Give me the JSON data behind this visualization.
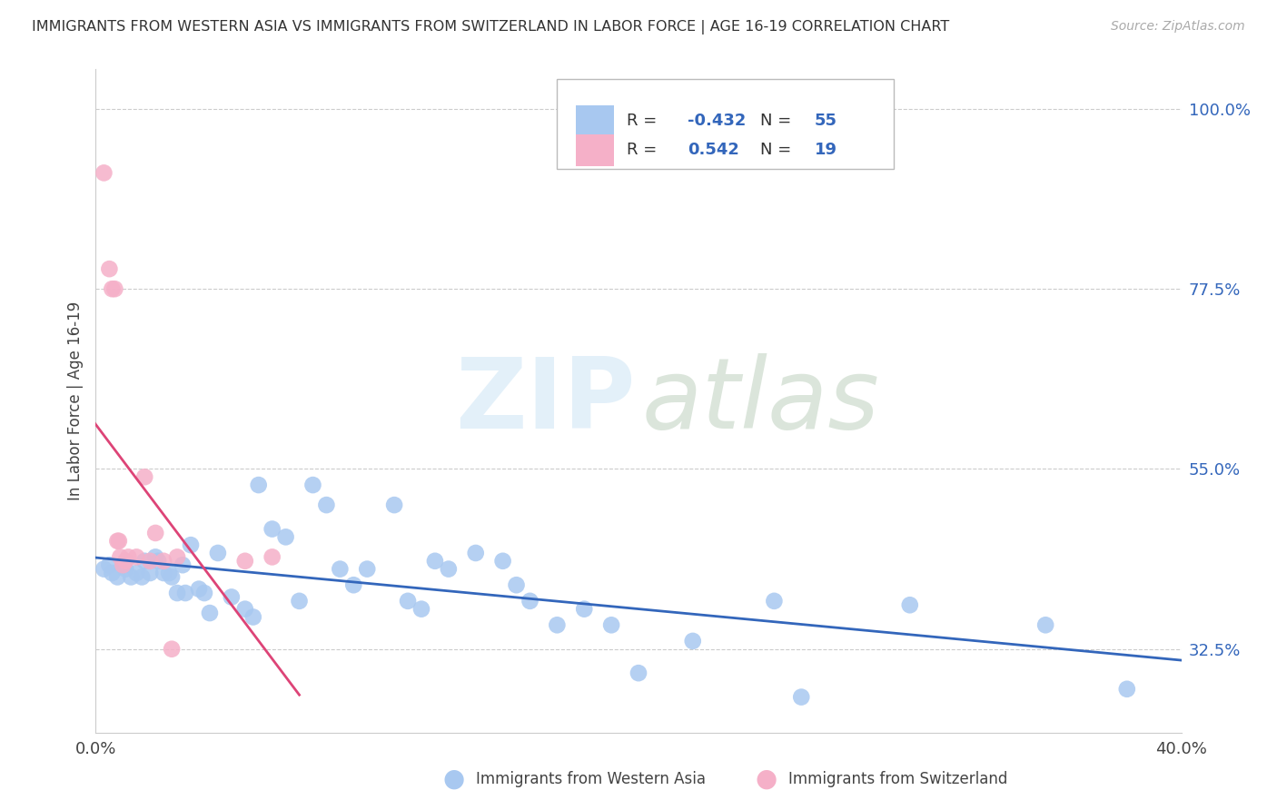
{
  "title": "IMMIGRANTS FROM WESTERN ASIA VS IMMIGRANTS FROM SWITZERLAND IN LABOR FORCE | AGE 16-19 CORRELATION CHART",
  "source": "Source: ZipAtlas.com",
  "label_blue": "Immigrants from Western Asia",
  "label_pink": "Immigrants from Switzerland",
  "ylabel": "In Labor Force | Age 16-19",
  "xlim": [
    0.0,
    0.4
  ],
  "ylim": [
    0.22,
    1.05
  ],
  "yticks_right": [
    0.325,
    0.55,
    0.775,
    1.0
  ],
  "ytick_labels_right": [
    "32.5%",
    "55.0%",
    "77.5%",
    "100.0%"
  ],
  "legend_r_blue": "-0.432",
  "legend_n_blue": "55",
  "legend_r_pink": "0.542",
  "legend_n_pink": "19",
  "color_blue": "#a8c8f0",
  "color_pink": "#f5b0c8",
  "line_color_blue": "#3366bb",
  "line_color_pink": "#dd4477",
  "blue_x": [
    0.003,
    0.005,
    0.006,
    0.008,
    0.01,
    0.011,
    0.013,
    0.015,
    0.017,
    0.018,
    0.02,
    0.022,
    0.023,
    0.025,
    0.027,
    0.028,
    0.03,
    0.032,
    0.033,
    0.035,
    0.038,
    0.04,
    0.042,
    0.045,
    0.05,
    0.055,
    0.058,
    0.06,
    0.065,
    0.07,
    0.075,
    0.08,
    0.085,
    0.09,
    0.095,
    0.1,
    0.11,
    0.115,
    0.12,
    0.125,
    0.13,
    0.14,
    0.15,
    0.155,
    0.16,
    0.17,
    0.18,
    0.19,
    0.2,
    0.22,
    0.25,
    0.26,
    0.3,
    0.35,
    0.38
  ],
  "blue_y": [
    0.425,
    0.43,
    0.42,
    0.415,
    0.43,
    0.425,
    0.415,
    0.42,
    0.415,
    0.435,
    0.42,
    0.44,
    0.435,
    0.42,
    0.42,
    0.415,
    0.395,
    0.43,
    0.395,
    0.455,
    0.4,
    0.395,
    0.37,
    0.445,
    0.39,
    0.375,
    0.365,
    0.53,
    0.475,
    0.465,
    0.385,
    0.53,
    0.505,
    0.425,
    0.405,
    0.425,
    0.505,
    0.385,
    0.375,
    0.435,
    0.425,
    0.445,
    0.435,
    0.405,
    0.385,
    0.355,
    0.375,
    0.355,
    0.295,
    0.335,
    0.385,
    0.265,
    0.38,
    0.355,
    0.275
  ],
  "pink_x": [
    0.003,
    0.005,
    0.006,
    0.007,
    0.008,
    0.0085,
    0.009,
    0.01,
    0.011,
    0.012,
    0.015,
    0.018,
    0.02,
    0.022,
    0.025,
    0.028,
    0.03,
    0.055,
    0.065
  ],
  "pink_y": [
    0.92,
    0.8,
    0.775,
    0.775,
    0.46,
    0.46,
    0.44,
    0.43,
    0.435,
    0.44,
    0.44,
    0.54,
    0.435,
    0.47,
    0.435,
    0.325,
    0.44,
    0.435,
    0.44
  ],
  "background_color": "#ffffff",
  "grid_color": "#cccccc"
}
